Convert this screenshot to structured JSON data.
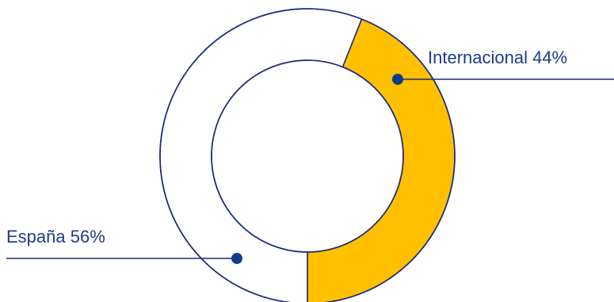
{
  "chart_data": {
    "type": "pie",
    "variant": "donut",
    "title": "",
    "slices": [
      {
        "label": "Internacional",
        "display": "Internacional 44%",
        "value": 44,
        "color": "#FFC000"
      },
      {
        "label": "España",
        "display": "España 56%",
        "value": 56,
        "color": "#FFFFFF"
      }
    ],
    "outline_color": "#1F2A7C",
    "label_color": "#1F3C88",
    "marker_color": "#0F3D8C",
    "legend": "none"
  }
}
